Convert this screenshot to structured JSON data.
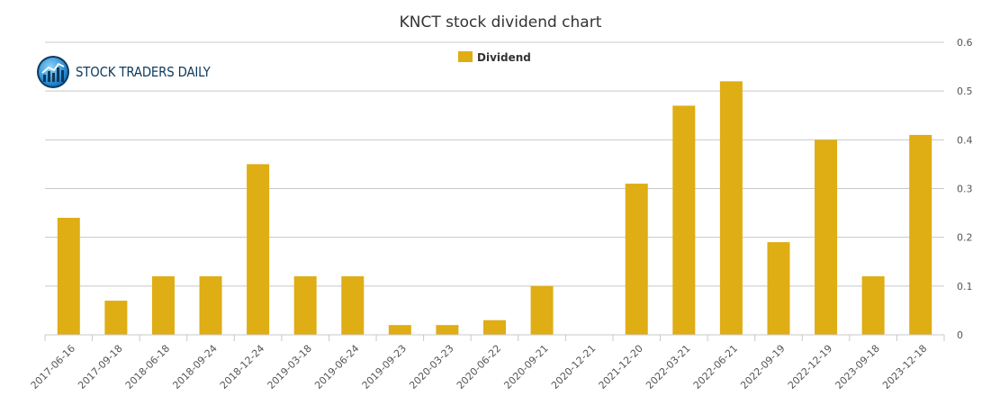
{
  "logo": {
    "text": "STOCK TRADERS DAILY",
    "icon": "bar-chart-globe-icon"
  },
  "chart_data": {
    "type": "bar",
    "title": "KNCT stock dividend chart",
    "xlabel": "",
    "ylabel": "",
    "ylim": [
      0,
      0.6
    ],
    "yticks": [
      "0",
      "0.1",
      "0.2",
      "0.3",
      "0.4",
      "0.5",
      "0.6"
    ],
    "legend": {
      "position": "top-center",
      "entries": [
        "Dividend"
      ]
    },
    "grid": true,
    "categories": [
      "2017-06-16",
      "2017-09-18",
      "2018-06-18",
      "2018-09-24",
      "2018-12-24",
      "2019-03-18",
      "2019-06-24",
      "2019-09-23",
      "2020-03-23",
      "2020-06-22",
      "2020-09-21",
      "2020-12-21",
      "2021-12-20",
      "2022-03-21",
      "2022-06-21",
      "2022-09-19",
      "2022-12-19",
      "2023-09-18",
      "2023-12-18"
    ],
    "series": [
      {
        "name": "Dividend",
        "color": "#dfad14",
        "values": [
          0.24,
          0.07,
          0.12,
          0.12,
          0.35,
          0.12,
          0.12,
          0.02,
          0.02,
          0.03,
          0.1,
          0,
          0.31,
          0.47,
          0.52,
          0.19,
          0.4,
          0.12,
          0.41
        ]
      }
    ]
  }
}
